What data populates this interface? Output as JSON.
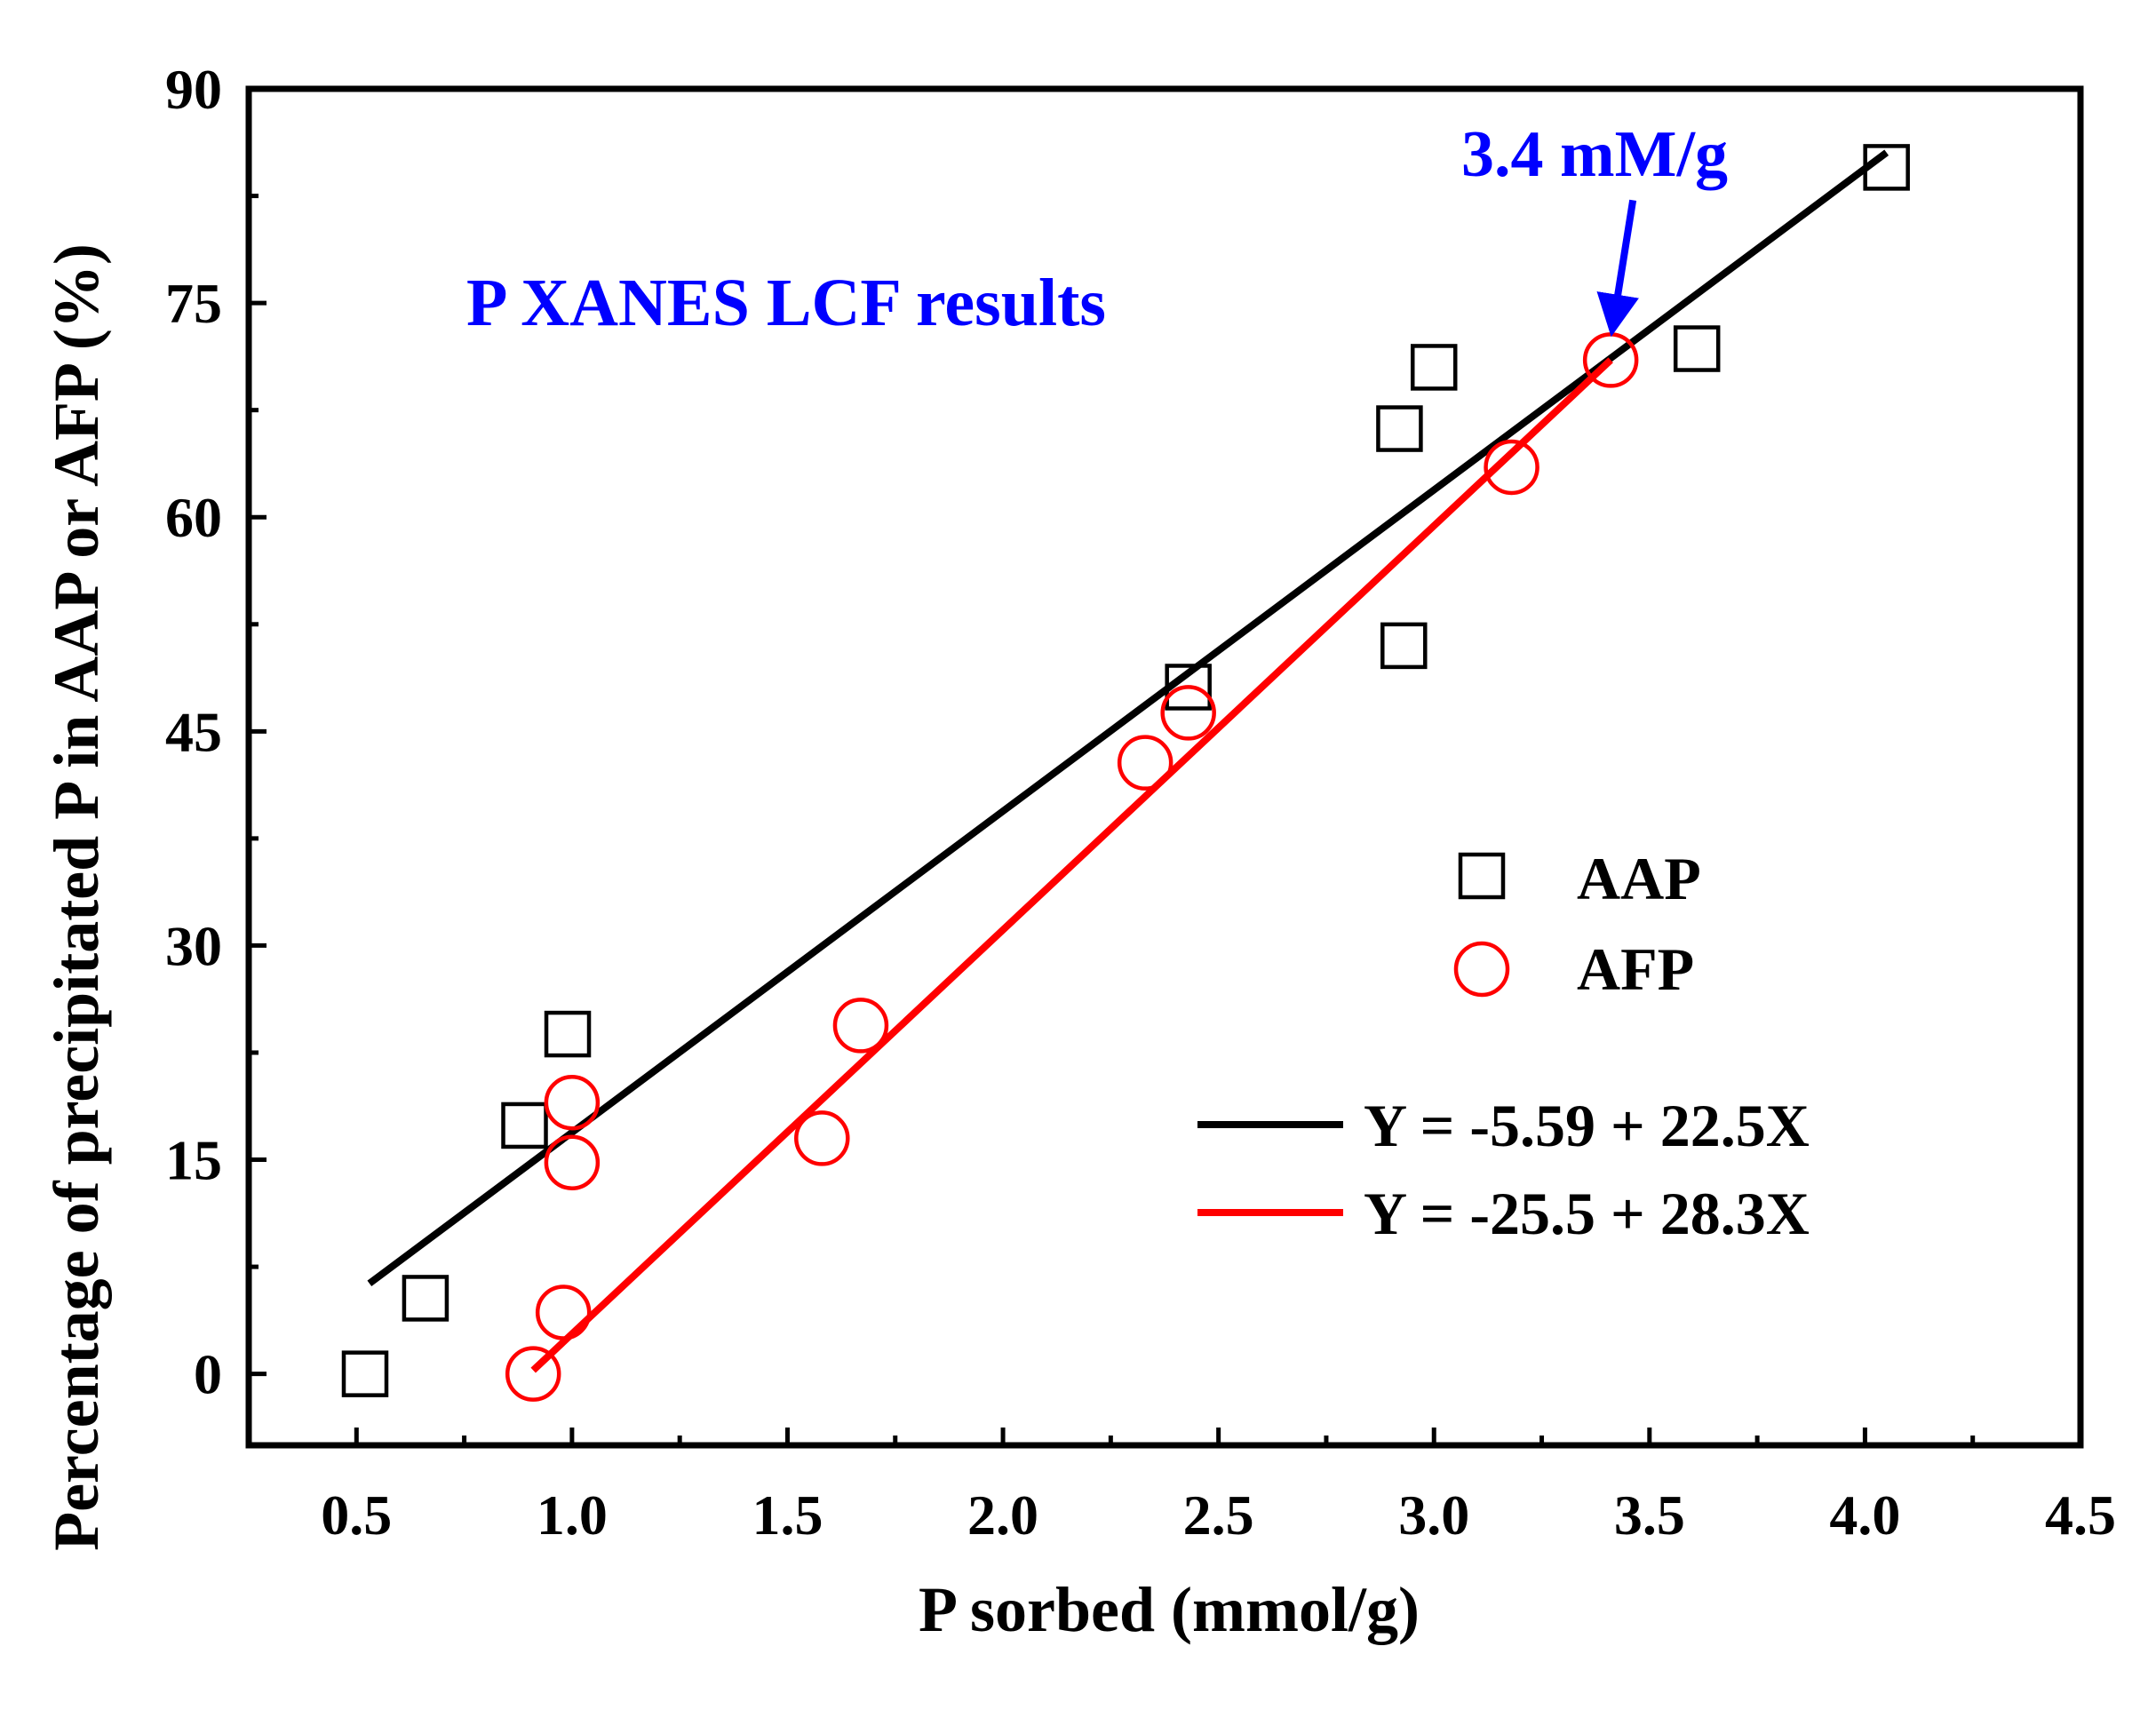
{
  "chart_data": {
    "type": "scatter",
    "title": "P XANES LCF results",
    "xlabel": "P sorbed (mmol/g)",
    "ylabel": "Percentage of precipitated P in AAP or AFP  (%)",
    "xlim": [
      0.25,
      4.5
    ],
    "ylim": [
      -5,
      90
    ],
    "xticks": [
      0.5,
      1.0,
      1.5,
      2.0,
      2.5,
      3.0,
      3.5,
      4.0,
      4.5
    ],
    "xtick_labels": [
      "0.5",
      "1.0",
      "1.5",
      "2.0",
      "2.5",
      "3.0",
      "3.5",
      "4.0",
      "4.5"
    ],
    "yticks": [
      0,
      15,
      30,
      45,
      60,
      75,
      90
    ],
    "ytick_labels": [
      "0",
      "15",
      "30",
      "45",
      "60",
      "75",
      "90"
    ],
    "series": [
      {
        "name": "AAP",
        "marker": "square",
        "color": "#000000",
        "x": [
          0.52,
          0.66,
          0.89,
          0.99,
          2.43,
          2.92,
          2.93,
          3.0,
          3.61,
          4.05
        ],
        "y": [
          0.0,
          5.3,
          17.4,
          23.8,
          48.1,
          66.2,
          51.0,
          70.5,
          71.8,
          84.5
        ]
      },
      {
        "name": "AFP",
        "marker": "circle",
        "color": "#ff0000",
        "x": [
          0.91,
          0.98,
          1.0,
          1.0,
          1.58,
          1.67,
          2.33,
          2.43,
          3.18,
          3.41
        ],
        "y": [
          0.0,
          4.3,
          14.8,
          19.0,
          16.5,
          24.4,
          42.8,
          46.3,
          63.5,
          71.0
        ]
      }
    ],
    "fits": [
      {
        "label": "Y = -5.59 + 22.5X",
        "color": "#000000",
        "intercept": -5.59,
        "slope": 22.5,
        "x_range": [
          0.53,
          4.05
        ]
      },
      {
        "label": "Y = -25.5 + 28.3X",
        "color": "#ff0000",
        "intercept": -25.5,
        "slope": 28.3,
        "x_range": [
          0.91,
          3.41
        ]
      }
    ],
    "legend": {
      "position": "right",
      "entries": [
        "AAP",
        "AFP"
      ]
    },
    "annotations": [
      {
        "text": "3.4 mM/g",
        "color": "#0000ff",
        "arrow_to": [
          3.41,
          71.0
        ]
      },
      {
        "text": "P XANES LCF results",
        "color": "#0000ff"
      }
    ]
  }
}
